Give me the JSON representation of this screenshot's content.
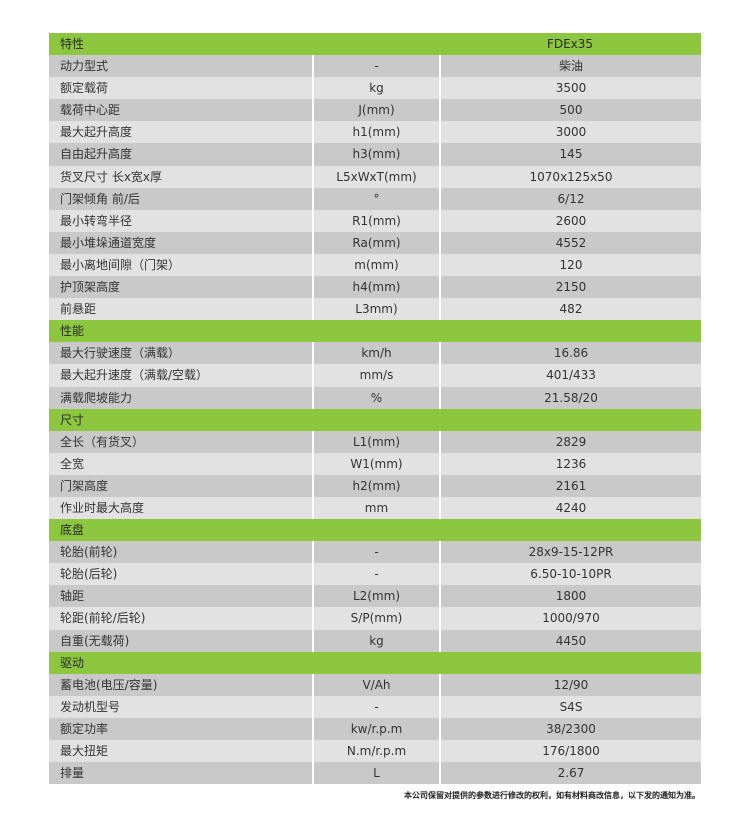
{
  "header": {
    "label": "特性",
    "model": "FDEx35"
  },
  "sections": [
    {
      "title": null,
      "rows": [
        [
          "动力型式",
          "-",
          "柴油"
        ],
        [
          "额定载荷",
          "kg",
          "3500"
        ],
        [
          "载荷中心距",
          "J(mm)",
          "500"
        ],
        [
          "最大起升高度",
          "h1(mm)",
          "3000"
        ],
        [
          "自由起升高度",
          "h3(mm)",
          "145"
        ],
        [
          "货叉尺寸 长x宽x厚",
          "L5xWxT(mm)",
          "1070x125x50"
        ],
        [
          "门架倾角 前/后",
          "°",
          "6/12"
        ],
        [
          "最小转弯半径",
          "R1(mm)",
          "2600"
        ],
        [
          "最小堆垛通道宽度",
          "Ra(mm)",
          "4552"
        ],
        [
          "最小离地间隙（门架）",
          "m(mm)",
          "120"
        ],
        [
          "护顶架高度",
          "h4(mm)",
          "2150"
        ],
        [
          "前悬距",
          "L3mm)",
          "482"
        ]
      ]
    },
    {
      "title": "性能",
      "rows": [
        [
          "最大行驶速度（满载）",
          "km/h",
          "16.86"
        ],
        [
          "最大起升速度（满载/空载）",
          "mm/s",
          "401/433"
        ],
        [
          "满载爬坡能力",
          "%",
          "21.58/20"
        ]
      ]
    },
    {
      "title": "尺寸",
      "rows": [
        [
          "全长（有货叉）",
          "L1(mm)",
          "2829"
        ],
        [
          "全宽",
          "W1(mm)",
          "1236"
        ],
        [
          "门架高度",
          "h2(mm)",
          "2161"
        ],
        [
          "作业时最大高度",
          "mm",
          "4240"
        ]
      ]
    },
    {
      "title": "底盘",
      "rows": [
        [
          "轮胎(前轮)",
          "-",
          "28x9-15-12PR"
        ],
        [
          "轮胎(后轮)",
          "-",
          "6.50-10-10PR"
        ],
        [
          "轴距",
          "L2(mm)",
          "1800"
        ],
        [
          "轮距(前轮/后轮)",
          "S/P(mm)",
          "1000/970"
        ],
        [
          "自重(无载荷)",
          "kg",
          "4450"
        ]
      ]
    },
    {
      "title": "驱动",
      "rows": [
        [
          "蓄电池(电压/容量)",
          "V/Ah",
          "12/90"
        ],
        [
          "发动机型号",
          "-",
          "S4S"
        ],
        [
          "额定功率",
          "kw/r.p.m",
          "38/2300"
        ],
        [
          "最大扭矩",
          "N.m/r.p.m",
          "176/1800"
        ],
        [
          "排量",
          "L",
          "2.67"
        ]
      ]
    }
  ],
  "note": "本公司保留对提供的参数进行修改的权利，如有材料商改信息，以下发的通知为准。",
  "colors": {
    "section": "#8dc63f",
    "row_dark": "#c9c9c9",
    "row_light": "#e2e2e2"
  }
}
